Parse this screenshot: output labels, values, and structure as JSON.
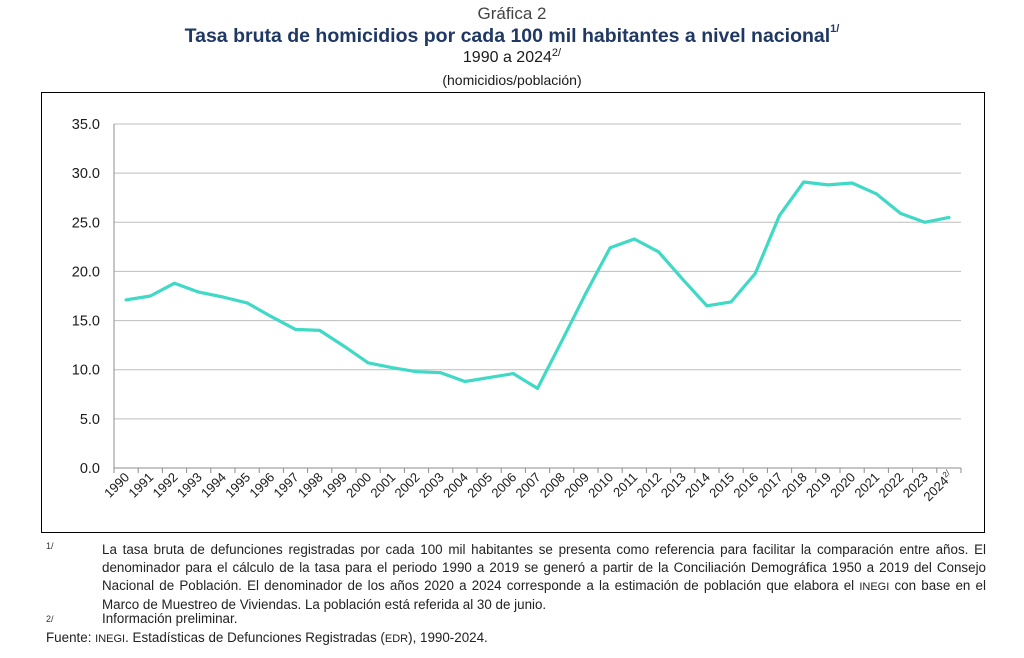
{
  "header": {
    "label": "Gráfica 2",
    "title": "Tasa bruta de homicidios por cada 100 mil habitantes a nivel nacional",
    "title_note": "1/",
    "subtitle": "1990 a 2024",
    "subtitle_note": "2/",
    "units": "(homicidios/población)"
  },
  "chart_data": {
    "type": "line",
    "title": "Tasa bruta de homicidios por cada 100 mil habitantes a nivel nacional",
    "categories": [
      "1990",
      "1991",
      "1992",
      "1993",
      "1994",
      "1995",
      "1996",
      "1997",
      "1998",
      "1999",
      "2000",
      "2001",
      "2002",
      "2003",
      "2004",
      "2005",
      "2006",
      "2007",
      "2008",
      "2009",
      "2010",
      "2011",
      "2012",
      "2013",
      "2014",
      "2015",
      "2016",
      "2017",
      "2018",
      "2019",
      "2020",
      "2021",
      "2022",
      "2023",
      "2024"
    ],
    "last_category_note": "2/",
    "series": [
      {
        "values": [
          17.1,
          17.5,
          18.8,
          17.9,
          17.4,
          16.8,
          15.4,
          14.1,
          14.0,
          12.4,
          10.7,
          10.2,
          9.8,
          9.7,
          8.8,
          9.2,
          9.6,
          8.1,
          12.9,
          17.8,
          22.4,
          23.3,
          22.0,
          19.2,
          16.5,
          16.9,
          19.8,
          25.7,
          29.1,
          28.8,
          29.0,
          27.9,
          25.9,
          25.0,
          25.5
        ]
      }
    ],
    "ylim": [
      0,
      35
    ],
    "yticks": [
      "0.0",
      "5.0",
      "10.0",
      "15.0",
      "20.0",
      "25.0",
      "30.0",
      "35.0"
    ],
    "grid": true,
    "legend": "none",
    "line_color": "#40d9c6",
    "grid_color": "#bdbdbd"
  },
  "notes": {
    "note1_mark": "1/",
    "note1_text": "La tasa bruta de defunciones registradas por cada 100 mil habitantes se presenta como referencia para facilitar la comparación entre años. El denominador para el cálculo de la tasa para el periodo 1990 a 2019 se generó a partir de la Conciliación Demográfica 1950 a 2019 del Consejo Nacional de Población. El denominador de los años 2020 a 2024 corresponde a la estimación de población que elabora el",
    "note1_inegi": "INEGI",
    "note1_text_end": "con base en el Marco de Muestreo de Viviendas. La población está referida al 30 de junio.",
    "note2_mark": "2/",
    "note2_text": "Información preliminar.",
    "source_label": "Fuente:",
    "source_inegi": "INEGI",
    "source_text_a": ". Estadísticas de Defunciones Registradas (",
    "source_edr": "EDR",
    "source_text_b": "), 1990-2024."
  }
}
